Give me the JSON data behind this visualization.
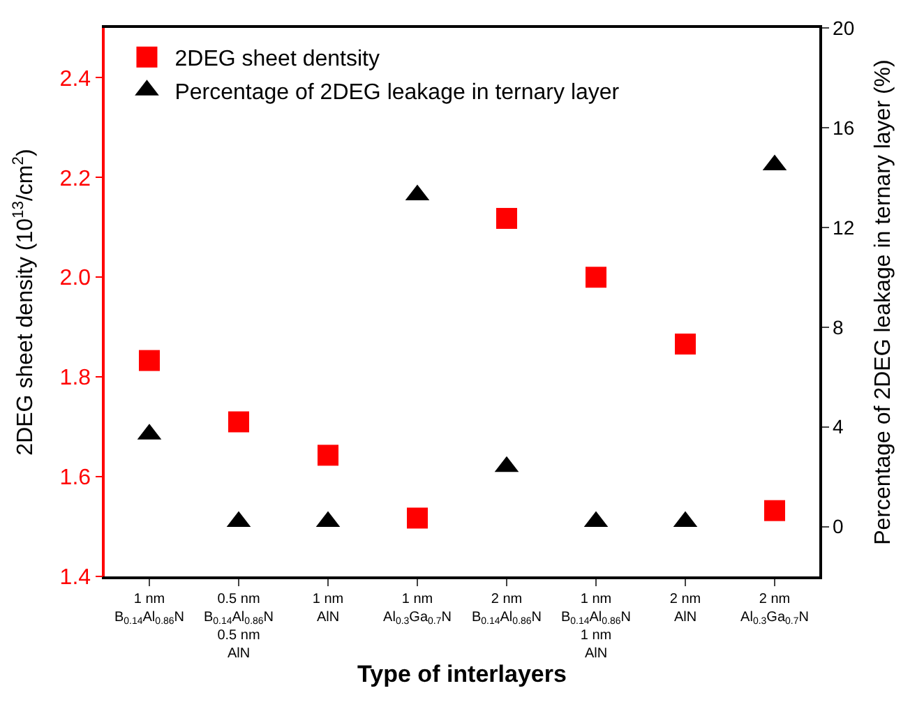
{
  "chart_data": {
    "type": "scatter",
    "xlabel": "Type of interlayers",
    "ylabel": "2DEG sheet density (10$^{13}$/cm$^{2}$)",
    "y2label": "Percentage of 2DEG leakage in ternary layer (%)",
    "categories": [
      "1 nm\nB$_{0.14}$Al$_{0.86}$N",
      "0.5 nm\nB$_{0.14}$Al$_{0.86}$N\n0.5 nm\nAlN",
      "1 nm\nAlN",
      "1 nm\nAl$_{0.3}$Ga$_{0.7}$N",
      "2 nm\nB$_{0.14}$Al$_{0.86}$N",
      "1 nm\nB$_{0.14}$Al$_{0.86}$N\n1 nm\nAlN",
      "2 nm\nAlN",
      "2 nm\nAl$_{0.3}$Ga$_{0.7}$N"
    ],
    "series": [
      {
        "name": "2DEG sheet dentsity",
        "color": "#ff0000",
        "marker": "square",
        "values": [
          1.833,
          1.71,
          1.643,
          1.517,
          2.118,
          2.0,
          1.866,
          1.532
        ]
      },
      {
        "name": "Percentage of 2DEG leakage in ternary layer",
        "color": "#000000",
        "marker": "triangle",
        "axis": "y2",
        "values": [
          3.7,
          0.2,
          0.2,
          13.3,
          2.4,
          0.2,
          0.2,
          14.5
        ]
      }
    ],
    "ylim": [
      1.4,
      2.5
    ],
    "yticks": [
      1.4,
      1.6,
      1.8,
      {
        "value": 2.0,
        "label": "2.0"
      },
      2.2,
      2.4
    ],
    "y2lim": [
      -2,
      20
    ],
    "y2ticks": [
      0,
      4,
      8,
      12,
      16,
      20
    ],
    "legend": "top left"
  }
}
